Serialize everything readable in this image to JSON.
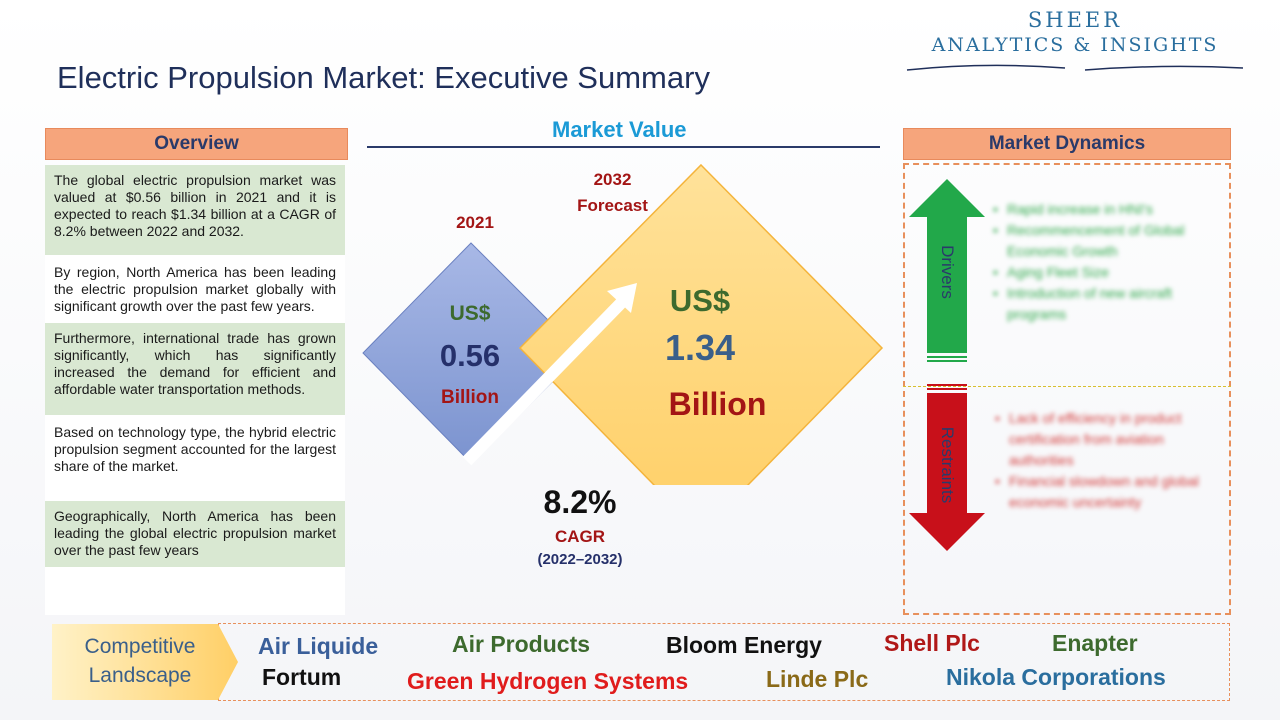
{
  "logo": {
    "line1": "SHEER",
    "line2": "ANALYTICS & INSIGHTS"
  },
  "title": "Electric Propulsion Market: Executive Summary",
  "overview": {
    "header": "Overview",
    "items": [
      "The global electric propulsion market was valued at $0.56 billion in 2021 and it is expected to reach $1.34 billion at a CAGR of 8.2% between 2022 and 2032.",
      "By region, North America has been leading the electric propulsion market globally with significant growth over the past few years.",
      "Furthermore, international trade has grown significantly, which has significantly increased the demand for efficient and affordable water transportation methods.",
      "Based on technology type, the hybrid electric propulsion segment accounted for the largest share of the market.",
      "Geographically, North America has been leading the global electric propulsion market over the past few years"
    ]
  },
  "market_value": {
    "title": "Market Value",
    "y2021": "2021",
    "small_currency": "US$",
    "small_value": "0.56",
    "small_unit": "Billion",
    "y2032": "2032",
    "forecast": "Forecast",
    "big_currency": "US$",
    "big_value": "1.34",
    "big_unit": "Billion",
    "cagr_value": "8.2%",
    "cagr_label": "CAGR",
    "cagr_period": "(2022–2032)",
    "colors": {
      "small_diamond": "#8fa3d8",
      "big_diamond": "#ffd77a"
    }
  },
  "dynamics": {
    "header": "Market Dynamics",
    "drivers_label": "Drivers",
    "restraints_label": "Restraints",
    "drivers": [
      "Rapid increase in HNI's",
      "Recommencement of Global Economic Growth",
      "Aging Fleet Size",
      "Introduction of new aircraft programs"
    ],
    "restraints": [
      "Lack of efficiency in product certification from aviation authorities",
      "Financial slowdown and global economic uncertainty"
    ],
    "colors": {
      "drivers": "#22a84a",
      "restraints": "#c8101a"
    }
  },
  "competitive": {
    "label_line1": "Competitive",
    "label_line2": "Landscape",
    "companies": [
      {
        "name": "Air Liquide",
        "color": "#3a5f9a"
      },
      {
        "name": "Air Products",
        "color": "#3d6a2e"
      },
      {
        "name": "Bloom Energy",
        "color": "#111111"
      },
      {
        "name": "Shell Plc",
        "color": "#b01818"
      },
      {
        "name": "Enapter",
        "color": "#3d6a2e"
      },
      {
        "name": "Fortum",
        "color": "#111111"
      },
      {
        "name": "Green Hydrogen Systems",
        "color": "#e01c1c"
      },
      {
        "name": "Linde Plc",
        "color": "#8a6a18"
      },
      {
        "name": "Nikola Corporations",
        "color": "#2a6e9e"
      }
    ]
  }
}
